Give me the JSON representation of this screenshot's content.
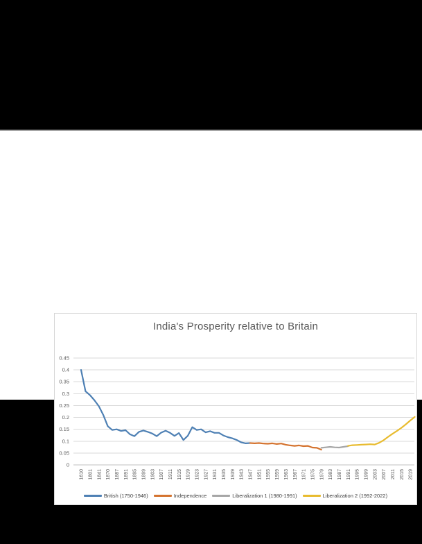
{
  "scene": {
    "background_color": "#000000",
    "band_color": "#ffffff"
  },
  "chart_data": {
    "type": "line",
    "title": "India's Prosperity relative to Britain",
    "title_color": "#595959",
    "grid_on": true,
    "grid_color": "#dadada",
    "axis_line_color": "#c0c0c0",
    "axis_text_color": "#595959",
    "legend_position": "bottom",
    "xlabel": "",
    "ylabel": "",
    "ylim": [
      0,
      0.45
    ],
    "y_ticks": [
      "0",
      "0.05",
      "0.1",
      "0.15",
      "0.2",
      "0.25",
      "0.3",
      "0.35",
      "0.4",
      "0.45"
    ],
    "y_tick_values": [
      0,
      0.05,
      0.1,
      0.15,
      0.2,
      0.25,
      0.3,
      0.35,
      0.4,
      0.45
    ],
    "x_tick_labels": [
      "1610",
      "1801",
      "1841",
      "1870",
      "1887",
      "1891",
      "1895",
      "1899",
      "1903",
      "1907",
      "1911",
      "1915",
      "1919",
      "1923",
      "1927",
      "1931",
      "1935",
      "1939",
      "1943",
      "1947",
      "1951",
      "1955",
      "1959",
      "1963",
      "1967",
      "1971",
      "1975",
      "1979",
      "1983",
      "1987",
      "1991",
      "1995",
      "1999",
      "2003",
      "2007",
      "2011",
      "2015",
      "2019"
    ],
    "category_years": [
      1610,
      1700,
      1801,
      1820,
      1841,
      1855,
      1870,
      1885,
      1887,
      1889,
      1891,
      1893,
      1895,
      1897,
      1899,
      1901,
      1903,
      1905,
      1907,
      1909,
      1911,
      1913,
      1915,
      1917,
      1919,
      1921,
      1923,
      1925,
      1927,
      1929,
      1931,
      1933,
      1935,
      1937,
      1939,
      1941,
      1943,
      1945,
      1947,
      1949,
      1951,
      1953,
      1955,
      1957,
      1959,
      1961,
      1963,
      1965,
      1967,
      1969,
      1971,
      1973,
      1975,
      1977,
      1979,
      1981,
      1983,
      1985,
      1987,
      1989,
      1991,
      1993,
      1995,
      1997,
      1999,
      2001,
      2003,
      2005,
      2007,
      2009,
      2011,
      2013,
      2015,
      2017,
      2019,
      2021
    ],
    "series": [
      {
        "name": "British (1750-1946)",
        "color": "#4e80b4",
        "points": [
          [
            1610,
            0.4
          ],
          [
            1700,
            0.31
          ],
          [
            1801,
            0.294
          ],
          [
            1820,
            0.272
          ],
          [
            1841,
            0.247
          ],
          [
            1855,
            0.21
          ],
          [
            1870,
            0.163
          ],
          [
            1885,
            0.147
          ],
          [
            1887,
            0.15
          ],
          [
            1889,
            0.143
          ],
          [
            1891,
            0.146
          ],
          [
            1893,
            0.129
          ],
          [
            1895,
            0.121
          ],
          [
            1897,
            0.139
          ],
          [
            1899,
            0.145
          ],
          [
            1901,
            0.139
          ],
          [
            1903,
            0.132
          ],
          [
            1905,
            0.121
          ],
          [
            1907,
            0.136
          ],
          [
            1909,
            0.144
          ],
          [
            1911,
            0.135
          ],
          [
            1913,
            0.122
          ],
          [
            1915,
            0.134
          ],
          [
            1917,
            0.105
          ],
          [
            1919,
            0.123
          ],
          [
            1921,
            0.159
          ],
          [
            1923,
            0.147
          ],
          [
            1925,
            0.15
          ],
          [
            1927,
            0.137
          ],
          [
            1929,
            0.142
          ],
          [
            1931,
            0.135
          ],
          [
            1933,
            0.135
          ],
          [
            1935,
            0.124
          ],
          [
            1937,
            0.117
          ],
          [
            1939,
            0.112
          ],
          [
            1941,
            0.105
          ],
          [
            1943,
            0.095
          ],
          [
            1945,
            0.091
          ],
          [
            1947,
            0.092
          ]
        ]
      },
      {
        "name": "Independence",
        "color": "#d4732f",
        "points": [
          [
            1947,
            0.092
          ],
          [
            1949,
            0.091
          ],
          [
            1951,
            0.092
          ],
          [
            1953,
            0.09
          ],
          [
            1955,
            0.089
          ],
          [
            1957,
            0.091
          ],
          [
            1959,
            0.088
          ],
          [
            1961,
            0.09
          ],
          [
            1963,
            0.085
          ],
          [
            1965,
            0.082
          ],
          [
            1967,
            0.08
          ],
          [
            1969,
            0.082
          ],
          [
            1971,
            0.079
          ],
          [
            1973,
            0.08
          ],
          [
            1975,
            0.073
          ],
          [
            1977,
            0.072
          ],
          [
            1979,
            0.064
          ]
        ]
      },
      {
        "name": "Liberalization 1 (1980-1991)",
        "color": "#a6a6a6",
        "points": [
          [
            1979,
            0.072
          ],
          [
            1981,
            0.074
          ],
          [
            1983,
            0.076
          ],
          [
            1985,
            0.074
          ],
          [
            1987,
            0.073
          ],
          [
            1989,
            0.076
          ],
          [
            1991,
            0.079
          ]
        ]
      },
      {
        "name": "Liberalization 2 (1992-2022)",
        "color": "#e8bb2e",
        "points": [
          [
            1991,
            0.08
          ],
          [
            1993,
            0.083
          ],
          [
            1995,
            0.084
          ],
          [
            1997,
            0.085
          ],
          [
            1999,
            0.086
          ],
          [
            2001,
            0.087
          ],
          [
            2003,
            0.086
          ],
          [
            2005,
            0.093
          ],
          [
            2007,
            0.104
          ],
          [
            2009,
            0.118
          ],
          [
            2011,
            0.131
          ],
          [
            2013,
            0.143
          ],
          [
            2015,
            0.156
          ],
          [
            2017,
            0.171
          ],
          [
            2019,
            0.187
          ],
          [
            2021,
            0.202
          ]
        ]
      }
    ]
  }
}
